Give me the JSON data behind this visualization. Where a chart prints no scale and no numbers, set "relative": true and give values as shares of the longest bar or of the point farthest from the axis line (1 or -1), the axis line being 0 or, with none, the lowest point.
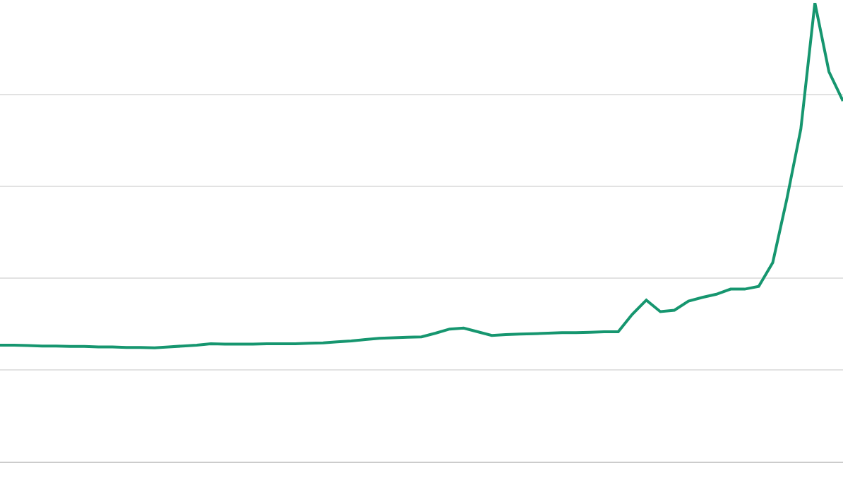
{
  "chart_data": {
    "type": "line",
    "relative": true,
    "grid": "y",
    "categories": [
      null,
      null,
      null,
      null,
      null,
      null,
      null,
      null,
      null,
      null,
      null,
      null,
      null,
      null,
      null,
      null,
      null,
      null,
      null,
      null,
      null,
      null,
      null,
      null,
      null,
      null,
      null,
      null,
      null,
      null,
      null,
      null,
      null,
      null,
      null,
      null,
      null,
      null,
      null,
      null,
      null,
      null,
      null,
      null,
      null,
      null,
      null,
      null,
      null,
      null,
      null,
      null,
      null,
      null,
      null,
      null,
      null,
      null,
      null,
      null,
      null
    ],
    "series": [
      {
        "color": "#16966f",
        "values": [
          0.254,
          0.254,
          0.253,
          0.252,
          0.252,
          0.251,
          0.251,
          0.25,
          0.25,
          0.249,
          0.249,
          0.248,
          0.25,
          0.252,
          0.254,
          0.257,
          0.256,
          0.256,
          0.256,
          0.257,
          0.257,
          0.257,
          0.258,
          0.259,
          0.261,
          0.263,
          0.266,
          0.269,
          0.27,
          0.271,
          0.272,
          0.28,
          0.289,
          0.291,
          0.283,
          0.275,
          0.277,
          0.278,
          0.279,
          0.28,
          0.281,
          0.281,
          0.282,
          0.283,
          0.283,
          0.321,
          0.352,
          0.327,
          0.33,
          0.35,
          0.358,
          0.365,
          0.376,
          0.376,
          0.382,
          0.434,
          0.572,
          0.725,
          1.0,
          0.85,
          0.786
        ]
      }
    ]
  }
}
